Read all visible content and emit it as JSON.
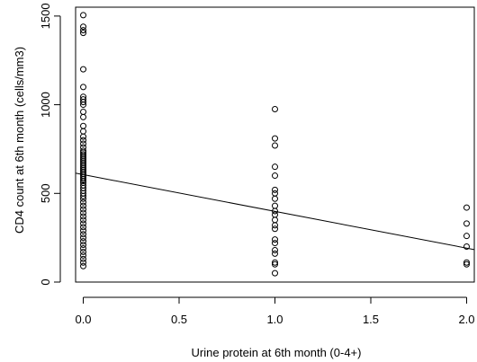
{
  "chart_data": {
    "type": "scatter",
    "title": "",
    "xlabel": "Urine protein at 6th month (0-4+)",
    "ylabel": "CD4 count at 6th month (cells/mm3)",
    "xlim": [
      -0.04,
      2.04
    ],
    "ylim": [
      0,
      1550
    ],
    "x_ticks": [
      0.0,
      0.5,
      1.0,
      1.5,
      2.0
    ],
    "x_tick_labels": [
      "0.0",
      "0.5",
      "1.0",
      "1.5",
      "2.0"
    ],
    "y_ticks": [
      0,
      500,
      1000,
      1500
    ],
    "y_tick_labels": [
      "0",
      "500",
      "1000",
      "1500"
    ],
    "grid": false,
    "legend": "none",
    "marker": "open-circle",
    "colors": {
      "points": "#000000",
      "line": "#000000",
      "axes": "#000000"
    },
    "points": [
      [
        0,
        1505
      ],
      [
        0,
        1440
      ],
      [
        0,
        1420
      ],
      [
        0,
        1405
      ],
      [
        0,
        1200
      ],
      [
        0,
        1100
      ],
      [
        0,
        1045
      ],
      [
        0,
        1030
      ],
      [
        0,
        1015
      ],
      [
        0,
        1000
      ],
      [
        0,
        960
      ],
      [
        0,
        930
      ],
      [
        0,
        880
      ],
      [
        0,
        850
      ],
      [
        0,
        820
      ],
      [
        0,
        800
      ],
      [
        0,
        780
      ],
      [
        0,
        760
      ],
      [
        0,
        740
      ],
      [
        0,
        730
      ],
      [
        0,
        720
      ],
      [
        0,
        710
      ],
      [
        0,
        700
      ],
      [
        0,
        690
      ],
      [
        0,
        680
      ],
      [
        0,
        670
      ],
      [
        0,
        660
      ],
      [
        0,
        650
      ],
      [
        0,
        640
      ],
      [
        0,
        630
      ],
      [
        0,
        620
      ],
      [
        0,
        610
      ],
      [
        0,
        600
      ],
      [
        0,
        590
      ],
      [
        0,
        580
      ],
      [
        0,
        570
      ],
      [
        0,
        560
      ],
      [
        0,
        545
      ],
      [
        0,
        530
      ],
      [
        0,
        515
      ],
      [
        0,
        500
      ],
      [
        0,
        485
      ],
      [
        0,
        470
      ],
      [
        0,
        450
      ],
      [
        0,
        430
      ],
      [
        0,
        410
      ],
      [
        0,
        390
      ],
      [
        0,
        370
      ],
      [
        0,
        350
      ],
      [
        0,
        330
      ],
      [
        0,
        310
      ],
      [
        0,
        290
      ],
      [
        0,
        270
      ],
      [
        0,
        250
      ],
      [
        0,
        230
      ],
      [
        0,
        210
      ],
      [
        0,
        190
      ],
      [
        0,
        170
      ],
      [
        0,
        150
      ],
      [
        0,
        130
      ],
      [
        0,
        110
      ],
      [
        0,
        90
      ],
      [
        1,
        975
      ],
      [
        1,
        810
      ],
      [
        1,
        770
      ],
      [
        1,
        650
      ],
      [
        1,
        600
      ],
      [
        1,
        520
      ],
      [
        1,
        500
      ],
      [
        1,
        470
      ],
      [
        1,
        430
      ],
      [
        1,
        400
      ],
      [
        1,
        380
      ],
      [
        1,
        350
      ],
      [
        1,
        320
      ],
      [
        1,
        300
      ],
      [
        1,
        240
      ],
      [
        1,
        220
      ],
      [
        1,
        180
      ],
      [
        1,
        160
      ],
      [
        1,
        110
      ],
      [
        1,
        100
      ],
      [
        1,
        50
      ],
      [
        2,
        420
      ],
      [
        2,
        330
      ],
      [
        2,
        260
      ],
      [
        2,
        200
      ],
      [
        2,
        110
      ],
      [
        2,
        100
      ]
    ],
    "fit_line": {
      "x": [
        -0.04,
        2.04
      ],
      "y": [
        614,
        183
      ]
    }
  }
}
